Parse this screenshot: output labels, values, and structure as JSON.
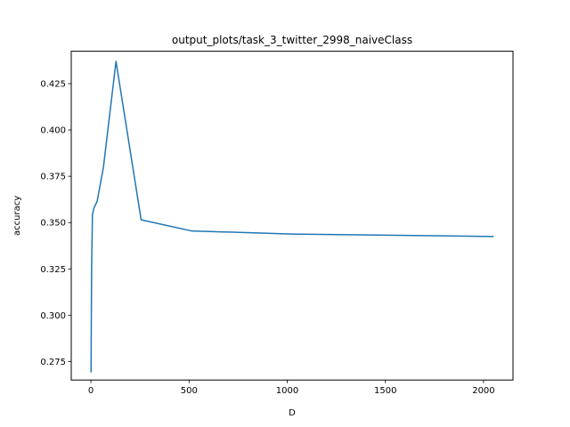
{
  "chart_data": {
    "type": "line",
    "title": "output_plots/task_3_twitter_2998_naiveClass",
    "xlabel": "D",
    "ylabel": "accuracy",
    "xlim": [
      -100,
      2150
    ],
    "ylim": [
      0.265,
      0.4425
    ],
    "xticks": [
      0,
      500,
      1000,
      1500,
      2000
    ],
    "yticks": [
      0.275,
      0.3,
      0.325,
      0.35,
      0.375,
      0.4,
      0.425
    ],
    "xtick_labels": [
      "0",
      "500",
      "1000",
      "1500",
      "2000"
    ],
    "ytick_labels": [
      "0.275",
      "0.300",
      "0.325",
      "0.350",
      "0.375",
      "0.400",
      "0.425"
    ],
    "grid": false,
    "series": [
      {
        "color": "#1f77b4",
        "x": [
          1,
          2,
          4,
          8,
          16,
          32,
          64,
          128,
          256,
          512,
          1024,
          2048
        ],
        "y": [
          0.2695,
          0.2955,
          0.3275,
          0.3545,
          0.358,
          0.3615,
          0.38,
          0.437,
          0.3515,
          0.3455,
          0.3438,
          0.3425
        ]
      }
    ]
  }
}
